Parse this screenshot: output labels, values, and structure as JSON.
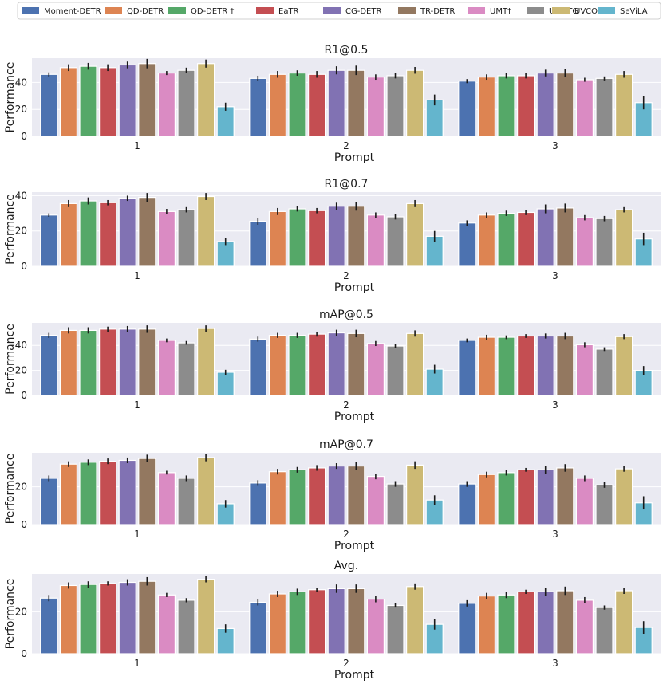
{
  "chart_data": {
    "type": "bar",
    "legend_position": "top",
    "series_names": [
      "Moment-DETR",
      "QD-DETR",
      "QD-DETR †",
      "EaTR",
      "CG-DETR",
      "TR-DETR",
      "UMT†",
      "UniVTG",
      "UVCOM",
      "SeViLA"
    ],
    "series_colors": [
      "#4c72b0",
      "#dd8452",
      "#55a868",
      "#c44e52",
      "#8172b3",
      "#937860",
      "#da8bc3",
      "#8c8c8c",
      "#ccb974",
      "#64b5cd"
    ],
    "background_color": "#eaeaf2",
    "panels": [
      {
        "title": "R1@0.5",
        "xlabel": "Prompt",
        "ylabel": "Performance",
        "categories": [
          "1",
          "2",
          "3"
        ],
        "ylim": [
          0,
          58
        ],
        "yticks": [
          0,
          20,
          40
        ],
        "values": [
          [
            46,
            43,
            41
          ],
          [
            51,
            46,
            44
          ],
          [
            52,
            47,
            45
          ],
          [
            51,
            46,
            45
          ],
          [
            53,
            49,
            47
          ],
          [
            54,
            49,
            47
          ],
          [
            47,
            44,
            42
          ],
          [
            49,
            45,
            43
          ],
          [
            54,
            49,
            46
          ],
          [
            22,
            27,
            25
          ]
        ],
        "errors": [
          [
            1.5,
            2,
            1.5
          ],
          [
            2.5,
            2.5,
            2
          ],
          [
            2.5,
            2,
            2
          ],
          [
            2.5,
            2.5,
            2
          ],
          [
            2.5,
            3,
            2.5
          ],
          [
            3.5,
            3.5,
            3
          ],
          [
            1.5,
            2,
            1.5
          ],
          [
            2,
            2,
            1.5
          ],
          [
            3,
            2.5,
            2.5
          ],
          [
            3,
            4,
            5
          ]
        ]
      },
      {
        "title": "R1@0.7",
        "xlabel": "Prompt",
        "ylabel": "Performance",
        "categories": [
          "1",
          "2",
          "3"
        ],
        "ylim": [
          0,
          42
        ],
        "yticks": [
          0,
          20,
          40
        ],
        "values": [
          [
            29,
            25.5,
            24.5
          ],
          [
            35.5,
            31,
            29
          ],
          [
            37,
            32.5,
            30
          ],
          [
            36,
            31.5,
            30.5
          ],
          [
            38.5,
            34,
            32.5
          ],
          [
            39,
            34,
            33
          ],
          [
            31,
            29,
            27.5
          ],
          [
            32,
            28,
            27
          ],
          [
            39.5,
            35.5,
            32
          ],
          [
            14,
            17,
            15.5
          ]
        ],
        "errors": [
          [
            1,
            2,
            1.5
          ],
          [
            2,
            2,
            1.5
          ],
          [
            2,
            1.5,
            1.5
          ],
          [
            1.5,
            1.5,
            1.5
          ],
          [
            1.5,
            2,
            2.5
          ],
          [
            2.5,
            2.5,
            2.5
          ],
          [
            1.5,
            1.5,
            1.5
          ],
          [
            1.5,
            1.5,
            1.5
          ],
          [
            2,
            2,
            1.5
          ],
          [
            2,
            3,
            3.5
          ]
        ]
      },
      {
        "title": "mAP@0.5",
        "xlabel": "Prompt",
        "ylabel": "Performance",
        "categories": [
          "1",
          "2",
          "3"
        ],
        "ylim": [
          0,
          58
        ],
        "yticks": [
          0,
          20,
          40
        ],
        "values": [
          [
            48,
            45,
            44
          ],
          [
            52,
            48,
            46.5
          ],
          [
            52,
            48,
            46.5
          ],
          [
            53,
            49,
            47.5
          ],
          [
            53,
            50,
            47.5
          ],
          [
            53,
            49.5,
            47.5
          ],
          [
            44,
            41.5,
            40.5
          ],
          [
            42,
            39.5,
            37
          ],
          [
            53.5,
            49.5,
            47
          ],
          [
            18.5,
            21,
            20
          ]
        ],
        "errors": [
          [
            2,
            2,
            1.5
          ],
          [
            2.5,
            2,
            2
          ],
          [
            2.5,
            2,
            1.5
          ],
          [
            2,
            2,
            1.5
          ],
          [
            2.5,
            2.5,
            2
          ],
          [
            3,
            3,
            2.5
          ],
          [
            1.5,
            2,
            2
          ],
          [
            1.5,
            1.5,
            1.5
          ],
          [
            2.5,
            2.5,
            2
          ],
          [
            2,
            3.5,
            3.5
          ]
        ]
      },
      {
        "title": "mAP@0.7",
        "xlabel": "Prompt",
        "ylabel": "Performance",
        "categories": [
          "1",
          "2",
          "3"
        ],
        "ylim": [
          0,
          38
        ],
        "yticks": [
          0,
          20
        ],
        "values": [
          [
            24.5,
            22,
            21.5
          ],
          [
            32,
            28,
            26.5
          ],
          [
            33,
            29,
            27.5
          ],
          [
            33.5,
            30,
            29
          ],
          [
            34,
            31,
            29
          ],
          [
            35,
            31,
            30
          ],
          [
            27.5,
            25.5,
            24.5
          ],
          [
            24.5,
            21.5,
            21
          ],
          [
            35.5,
            31.5,
            29.5
          ],
          [
            11,
            13,
            11.5
          ]
        ],
        "errors": [
          [
            1.5,
            1.5,
            1.5
          ],
          [
            1.5,
            1.5,
            1.5
          ],
          [
            1.5,
            1.5,
            1.5
          ],
          [
            1.5,
            1.5,
            1
          ],
          [
            1.5,
            1.5,
            2
          ],
          [
            2,
            2,
            2
          ],
          [
            1,
            1.5,
            1.5
          ],
          [
            1.5,
            1.5,
            1.5
          ],
          [
            2,
            2,
            1.5
          ],
          [
            2,
            2.5,
            3.5
          ]
        ]
      },
      {
        "title": "Avg.",
        "xlabel": "Prompt",
        "ylabel": "Performance",
        "categories": [
          "1",
          "2",
          "3"
        ],
        "ylim": [
          0,
          38
        ],
        "yticks": [
          0,
          20
        ],
        "values": [
          [
            26.5,
            24.5,
            24
          ],
          [
            32.5,
            28.5,
            27.5
          ],
          [
            33,
            29.5,
            28
          ],
          [
            33.5,
            30.5,
            29.5
          ],
          [
            34,
            31,
            29.5
          ],
          [
            34.5,
            31,
            30
          ],
          [
            28,
            26,
            25.5
          ],
          [
            25.5,
            23,
            22
          ],
          [
            35.5,
            32,
            30
          ],
          [
            12,
            14,
            12.5
          ]
        ],
        "errors": [
          [
            1.5,
            1.5,
            1.5
          ],
          [
            1.5,
            1.5,
            1.5
          ],
          [
            1.5,
            1.5,
            1.5
          ],
          [
            1,
            1,
            1
          ],
          [
            1.5,
            2,
            2
          ],
          [
            2,
            2,
            2
          ],
          [
            1,
            1.5,
            1.5
          ],
          [
            1,
            1,
            1
          ],
          [
            1.5,
            1.5,
            1.5
          ],
          [
            2,
            2.5,
            3
          ]
        ]
      }
    ]
  }
}
